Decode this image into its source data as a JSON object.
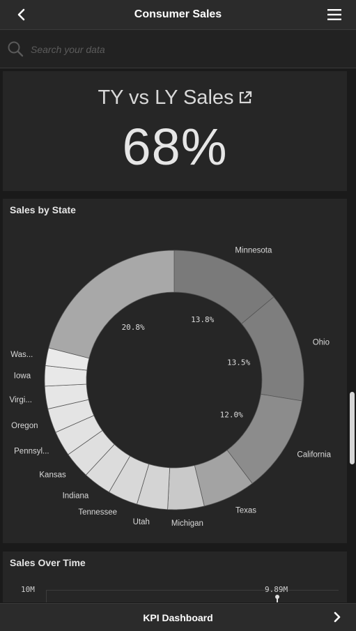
{
  "header": {
    "title": "Consumer Sales",
    "back_icon": "chevron-left-icon",
    "menu_icon": "hamburger-menu-icon"
  },
  "search": {
    "placeholder": "Search your data",
    "icon": "search-icon"
  },
  "kpi": {
    "title": "TY vs LY Sales",
    "value": "68%",
    "link_icon": "external-link-icon"
  },
  "pie_card": {
    "title": "Sales by State"
  },
  "line_card": {
    "title": "Sales Over Time",
    "y_tick": "10M",
    "max_label": "9.89M"
  },
  "footer": {
    "label": "KPI Dashboard",
    "next_icon": "chevron-right-icon"
  },
  "colors": {
    "background": "#1a1a1a",
    "bar": "#2b2b2b",
    "card": "#262626"
  },
  "chart_data": [
    {
      "type": "pie",
      "title": "Sales by State",
      "donut": true,
      "slices": [
        {
          "label": "Minnesota",
          "value": 13.8,
          "pct_label": "13.8%",
          "color": "#7a7a7a"
        },
        {
          "label": "Ohio",
          "value": 13.5,
          "pct_label": "13.5%",
          "color": "#7e7e7e"
        },
        {
          "label": "California",
          "value": 12.0,
          "pct_label": "12.0%",
          "color": "#8c8c8c"
        },
        {
          "label": "Texas",
          "value": 6.5,
          "color": "#a3a3a3"
        },
        {
          "label": "Michigan",
          "value": 4.5,
          "color": "#c9c9c9"
        },
        {
          "label": "Utah",
          "value": 3.8,
          "color": "#d4d4d4"
        },
        {
          "label": "Tennessee",
          "value": 3.7,
          "color": "#d8d8d8"
        },
        {
          "label": "Indiana",
          "value": 3.5,
          "color": "#dcdcdc"
        },
        {
          "label": "Kansas",
          "value": 3.3,
          "color": "#dfdfdf"
        },
        {
          "label": "Pennsyl...",
          "value": 3.1,
          "color": "#e2e2e2"
        },
        {
          "label": "Oregon",
          "value": 3.0,
          "color": "#e4e4e4"
        },
        {
          "label": "Virgi...",
          "value": 2.8,
          "color": "#e6e6e6"
        },
        {
          "label": "Iowa",
          "value": 2.5,
          "color": "#e8e8e8"
        },
        {
          "label": "Was...",
          "value": 2.2,
          "color": "#eaeaea"
        },
        {
          "label": "",
          "value": 20.8,
          "pct_label": "20.8%",
          "color": "#a8a8a8"
        }
      ]
    },
    {
      "type": "line",
      "title": "Sales Over Time",
      "y_ticks": [
        "10M"
      ],
      "annotations": [
        {
          "label": "9.89M",
          "value": 9.89
        }
      ]
    }
  ]
}
